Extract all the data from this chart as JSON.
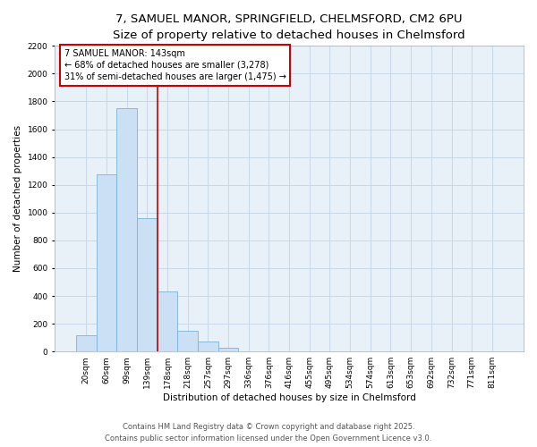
{
  "title_line1": "7, SAMUEL MANOR, SPRINGFIELD, CHELMSFORD, CM2 6PU",
  "title_line2": "Size of property relative to detached houses in Chelmsford",
  "xlabel": "Distribution of detached houses by size in Chelmsford",
  "ylabel": "Number of detached properties",
  "categories": [
    "20sqm",
    "60sqm",
    "99sqm",
    "139sqm",
    "178sqm",
    "218sqm",
    "257sqm",
    "297sqm",
    "336sqm",
    "376sqm",
    "416sqm",
    "455sqm",
    "495sqm",
    "534sqm",
    "574sqm",
    "613sqm",
    "653sqm",
    "692sqm",
    "732sqm",
    "771sqm",
    "811sqm"
  ],
  "values": [
    115,
    1275,
    1750,
    960,
    430,
    150,
    75,
    30,
    0,
    0,
    0,
    0,
    0,
    0,
    0,
    0,
    0,
    0,
    0,
    0,
    0
  ],
  "bar_color": "#cce0f5",
  "bar_edge_color": "#7ab3d9",
  "grid_color": "#c8d8e8",
  "bg_color": "#e8f0f8",
  "annotation_text": "7 SAMUEL MANOR: 143sqm\n← 68% of detached houses are smaller (3,278)\n31% of semi-detached houses are larger (1,475) →",
  "annotation_box_color": "#ffffff",
  "annotation_border_color": "#cc0000",
  "vline_color": "#cc0000",
  "vline_x": 3.5,
  "ylim": [
    0,
    2200
  ],
  "yticks": [
    0,
    200,
    400,
    600,
    800,
    1000,
    1200,
    1400,
    1600,
    1800,
    2000,
    2200
  ],
  "footer_line1": "Contains HM Land Registry data © Crown copyright and database right 2025.",
  "footer_line2": "Contains public sector information licensed under the Open Government Licence v3.0.",
  "title_fontsize": 9.5,
  "subtitle_fontsize": 8.5,
  "axis_label_fontsize": 7.5,
  "tick_fontsize": 6.5,
  "annotation_fontsize": 7,
  "footer_fontsize": 6
}
